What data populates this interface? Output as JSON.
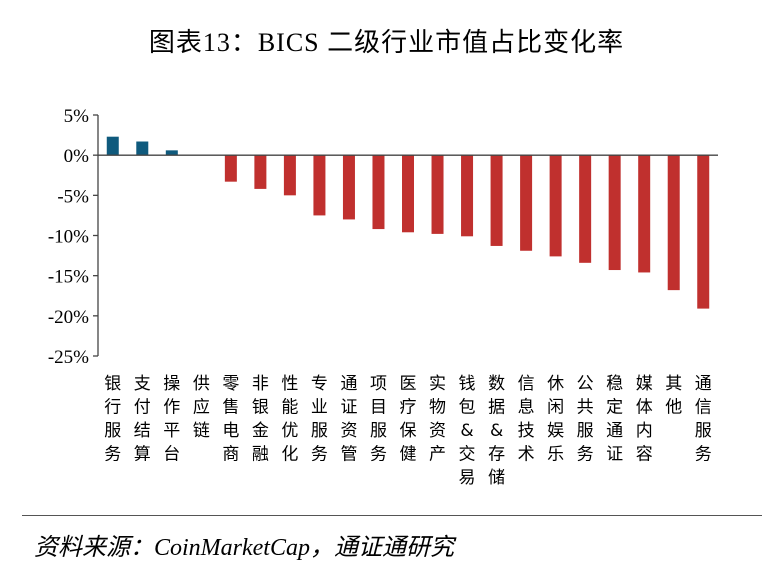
{
  "chart_data": {
    "type": "bar",
    "title": "图表13：BICS 二级行业市值占比变化率",
    "xlabel": "",
    "ylabel": "",
    "ylim": [
      -25,
      5
    ],
    "yticks": [
      5,
      0,
      -5,
      -10,
      -15,
      -20,
      -25
    ],
    "ytick_labels": [
      "5%",
      "0%",
      "-5%",
      "-10%",
      "-15%",
      "-20%",
      "-25%"
    ],
    "grid": false,
    "categories": [
      "银行服务",
      "支付结算",
      "操作平台",
      "供应链",
      "零售电商",
      "非银金融",
      "性能优化",
      "专业服务",
      "通证资管",
      "项目服务",
      "医疗保健",
      "实物资产",
      "钱包&交易",
      "数据&存储",
      "信息技术",
      "休闲娱乐",
      "公共服务",
      "稳定通证",
      "媒体内容",
      "其他",
      "通信服务"
    ],
    "values": [
      2.3,
      1.7,
      0.6,
      0.0,
      -3.3,
      -4.2,
      -5.0,
      -7.5,
      -8.0,
      -9.2,
      -9.6,
      -9.8,
      -10.1,
      -11.3,
      -11.9,
      -12.6,
      -13.4,
      -14.3,
      -14.6,
      -16.8,
      -19.1
    ],
    "colors": {
      "positive": "#0f5a7d",
      "negative": "#c0302e"
    }
  },
  "source": "资料来源：CoinMarketCap，通证通研究"
}
